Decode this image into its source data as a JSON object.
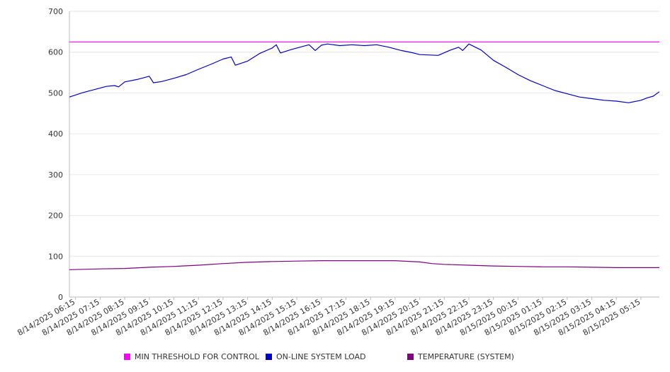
{
  "chart_data": {
    "type": "line",
    "xlabel": "",
    "ylabel": "",
    "ylim": [
      0,
      700
    ],
    "yticks": [
      0,
      100,
      200,
      300,
      400,
      500,
      600,
      700
    ],
    "x_tick_labels": [
      "8/14/2025 06:15",
      "8/14/2025 07:15",
      "8/14/2025 08:15",
      "8/14/2025 09:15",
      "8/14/2025 10:15",
      "8/14/2025 11:15",
      "8/14/2025 12:15",
      "8/14/2025 13:15",
      "8/14/2025 14:15",
      "8/14/2025 15:15",
      "8/14/2025 16:15",
      "8/14/2025 17:15",
      "8/14/2025 18:15",
      "8/14/2025 19:15",
      "8/14/2025 20:15",
      "8/14/2025 21:15",
      "8/14/2025 22:15",
      "8/14/2025 23:15",
      "8/15/2025 00:15",
      "8/15/2025 01:15",
      "8/15/2025 02:15",
      "8/15/2025 03:15",
      "8/15/2025 04:15",
      "8/15/2025 05:15"
    ],
    "grid": true,
    "legend_position": "bottom",
    "series": [
      {
        "name": "MIN THRESHOLD FOR CONTROL",
        "color": "#ff00ff",
        "points": [
          [
            "8/14/2025 06:00",
            625
          ],
          [
            "8/15/2025 06:00",
            625
          ]
        ]
      },
      {
        "name": "ON-LINE SYSTEM LOAD",
        "color": "#0000cc",
        "points": [
          [
            "8/14/2025 06:00",
            490
          ],
          [
            "8/14/2025 06:30",
            500
          ],
          [
            "8/14/2025 07:00",
            508
          ],
          [
            "8/14/2025 07:30",
            516
          ],
          [
            "8/14/2025 07:50",
            518
          ],
          [
            "8/14/2025 08:00",
            515
          ],
          [
            "8/14/2025 08:15",
            527
          ],
          [
            "8/14/2025 08:45",
            533
          ],
          [
            "8/14/2025 09:15",
            541
          ],
          [
            "8/14/2025 09:25",
            525
          ],
          [
            "8/14/2025 09:45",
            528
          ],
          [
            "8/14/2025 10:15",
            536
          ],
          [
            "8/14/2025 10:45",
            545
          ],
          [
            "8/14/2025 11:15",
            558
          ],
          [
            "8/14/2025 11:45",
            570
          ],
          [
            "8/14/2025 12:15",
            583
          ],
          [
            "8/14/2025 12:35",
            588
          ],
          [
            "8/14/2025 12:45",
            568
          ],
          [
            "8/14/2025 13:15",
            578
          ],
          [
            "8/14/2025 13:45",
            597
          ],
          [
            "8/14/2025 14:15",
            610
          ],
          [
            "8/14/2025 14:25",
            618
          ],
          [
            "8/14/2025 14:35",
            598
          ],
          [
            "8/14/2025 15:00",
            606
          ],
          [
            "8/14/2025 15:30",
            614
          ],
          [
            "8/14/2025 15:45",
            618
          ],
          [
            "8/14/2025 16:00",
            604
          ],
          [
            "8/14/2025 16:15",
            617
          ],
          [
            "8/14/2025 16:30",
            620
          ],
          [
            "8/14/2025 17:00",
            616
          ],
          [
            "8/14/2025 17:30",
            618
          ],
          [
            "8/14/2025 18:00",
            616
          ],
          [
            "8/14/2025 18:30",
            618
          ],
          [
            "8/14/2025 19:00",
            612
          ],
          [
            "8/14/2025 19:30",
            604
          ],
          [
            "8/14/2025 20:00",
            598
          ],
          [
            "8/14/2025 20:15",
            594
          ],
          [
            "8/14/2025 21:00",
            592
          ],
          [
            "8/14/2025 21:30",
            605
          ],
          [
            "8/14/2025 21:50",
            612
          ],
          [
            "8/14/2025 22:00",
            604
          ],
          [
            "8/14/2025 22:15",
            620
          ],
          [
            "8/14/2025 22:45",
            605
          ],
          [
            "8/14/2025 23:15",
            580
          ],
          [
            "8/14/2025 23:45",
            563
          ],
          [
            "8/15/2025 00:15",
            545
          ],
          [
            "8/15/2025 00:45",
            530
          ],
          [
            "8/15/2025 01:15",
            518
          ],
          [
            "8/15/2025 01:45",
            506
          ],
          [
            "8/15/2025 02:15",
            498
          ],
          [
            "8/15/2025 02:45",
            490
          ],
          [
            "8/15/2025 03:15",
            486
          ],
          [
            "8/15/2025 03:45",
            482
          ],
          [
            "8/15/2025 04:15",
            480
          ],
          [
            "8/15/2025 04:45",
            476
          ],
          [
            "8/15/2025 05:15",
            482
          ],
          [
            "8/15/2025 05:30",
            488
          ],
          [
            "8/15/2025 05:45",
            492
          ],
          [
            "8/15/2025 06:00",
            503
          ]
        ]
      },
      {
        "name": "TEMPERATURE (SYSTEM)",
        "color": "#800080",
        "points": [
          [
            "8/14/2025 06:00",
            67
          ],
          [
            "8/14/2025 07:15",
            69
          ],
          [
            "8/14/2025 08:15",
            70
          ],
          [
            "8/14/2025 09:15",
            73
          ],
          [
            "8/14/2025 10:15",
            75
          ],
          [
            "8/14/2025 11:15",
            78
          ],
          [
            "8/14/2025 12:15",
            82
          ],
          [
            "8/14/2025 13:15",
            85
          ],
          [
            "8/14/2025 14:15",
            87
          ],
          [
            "8/14/2025 15:15",
            88
          ],
          [
            "8/14/2025 16:15",
            89
          ],
          [
            "8/14/2025 17:15",
            89
          ],
          [
            "8/14/2025 18:15",
            89
          ],
          [
            "8/14/2025 19:15",
            89
          ],
          [
            "8/14/2025 20:15",
            86
          ],
          [
            "8/14/2025 20:45",
            82
          ],
          [
            "8/14/2025 21:15",
            80
          ],
          [
            "8/14/2025 22:15",
            78
          ],
          [
            "8/14/2025 23:15",
            76
          ],
          [
            "8/15/2025 00:15",
            75
          ],
          [
            "8/15/2025 01:15",
            74
          ],
          [
            "8/15/2025 02:15",
            74
          ],
          [
            "8/15/2025 03:15",
            73
          ],
          [
            "8/15/2025 04:15",
            72
          ],
          [
            "8/15/2025 05:15",
            72
          ],
          [
            "8/15/2025 06:00",
            72
          ]
        ]
      }
    ]
  }
}
